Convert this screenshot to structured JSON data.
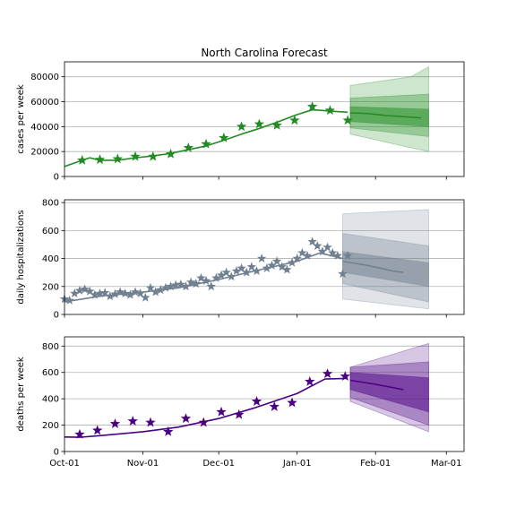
{
  "figure": {
    "title": "North Carolina Forecast"
  },
  "chart_data": [
    {
      "type": "line",
      "panel": "cases",
      "ylabel": "cases per week",
      "xlim": [
        "2020-10-01",
        "2021-03-08"
      ],
      "ylim": [
        0,
        92000
      ],
      "yticks": [
        0,
        20000,
        40000,
        60000,
        80000
      ],
      "ytick_labels": [
        "0",
        "20000",
        "40000",
        "60000",
        "80000"
      ],
      "grid": "horizontal",
      "color": "#228b22",
      "observed": {
        "marker": "star",
        "x": [
          "2020-10-08",
          "2020-10-15",
          "2020-10-22",
          "2020-10-29",
          "2020-11-05",
          "2020-11-12",
          "2020-11-19",
          "2020-11-26",
          "2020-12-03",
          "2020-12-10",
          "2020-12-17",
          "2020-12-24",
          "2020-12-31",
          "2021-01-07",
          "2021-01-14",
          "2021-01-21"
        ],
        "y": [
          13000,
          13500,
          14000,
          16000,
          16000,
          18000,
          23000,
          26000,
          31000,
          40000,
          42000,
          41000,
          45000,
          56000,
          53000,
          45000
        ]
      },
      "fit": {
        "x": [
          "2020-10-01",
          "2020-10-08",
          "2020-10-11",
          "2020-10-15",
          "2020-10-22",
          "2020-10-29",
          "2020-11-05",
          "2020-11-12",
          "2020-11-19",
          "2020-11-26",
          "2020-12-03",
          "2020-12-10",
          "2020-12-17",
          "2020-12-24",
          "2020-12-31",
          "2021-01-07",
          "2021-01-14",
          "2021-01-21"
        ],
        "y": [
          8000,
          13000,
          15000,
          13000,
          13000,
          15000,
          16500,
          18500,
          21500,
          24500,
          29000,
          34000,
          38500,
          43500,
          49000,
          53500,
          52500,
          51500
        ]
      },
      "forecast": {
        "x": [
          "2021-01-22",
          "2021-01-29",
          "2021-02-05",
          "2021-02-12",
          "2021-02-19"
        ],
        "median": [
          51000,
          50500,
          49000,
          48000,
          47000
        ],
        "band_inner": {
          "x": [
            "2021-01-22",
            "2021-02-22"
          ],
          "low": [
            44000,
            40000
          ],
          "high": [
            56000,
            54000
          ]
        },
        "band_mid": {
          "x": [
            "2021-01-22",
            "2021-02-22"
          ],
          "low": [
            39000,
            32000
          ],
          "high": [
            63000,
            66000
          ]
        },
        "band_outer": {
          "x": [
            "2021-01-22",
            "2021-02-15",
            "2021-02-22"
          ],
          "low": [
            34000,
            23000,
            20000
          ],
          "high": [
            73000,
            80000,
            88000
          ]
        }
      }
    },
    {
      "type": "line",
      "panel": "hospitalizations",
      "ylabel": "daily hospitalizations",
      "xlim": [
        "2020-10-01",
        "2021-03-08"
      ],
      "ylim": [
        0,
        820
      ],
      "yticks": [
        0,
        200,
        400,
        600,
        800
      ],
      "ytick_labels": [
        "0",
        "200",
        "400",
        "600",
        "800"
      ],
      "grid": "horizontal",
      "color": "#708090",
      "observed": {
        "marker": "star",
        "x": [
          "2020-10-01",
          "2020-10-03",
          "2020-10-05",
          "2020-10-07",
          "2020-10-09",
          "2020-10-11",
          "2020-10-13",
          "2020-10-15",
          "2020-10-17",
          "2020-10-19",
          "2020-10-21",
          "2020-10-23",
          "2020-10-25",
          "2020-10-27",
          "2020-10-29",
          "2020-10-31",
          "2020-11-02",
          "2020-11-04",
          "2020-11-06",
          "2020-11-08",
          "2020-11-10",
          "2020-11-12",
          "2020-11-14",
          "2020-11-16",
          "2020-11-18",
          "2020-11-20",
          "2020-11-22",
          "2020-11-24",
          "2020-11-26",
          "2020-11-28",
          "2020-11-30",
          "2020-12-02",
          "2020-12-04",
          "2020-12-06",
          "2020-12-08",
          "2020-12-10",
          "2020-12-12",
          "2020-12-14",
          "2020-12-16",
          "2020-12-18",
          "2020-12-20",
          "2020-12-22",
          "2020-12-24",
          "2020-12-26",
          "2020-12-28",
          "2020-12-30",
          "2021-01-01",
          "2021-01-03",
          "2021-01-05",
          "2021-01-07",
          "2021-01-09",
          "2021-01-11",
          "2021-01-13",
          "2021-01-15",
          "2021-01-17",
          "2021-01-19",
          "2021-01-21"
        ],
        "y": [
          110,
          100,
          150,
          170,
          180,
          165,
          140,
          150,
          155,
          130,
          145,
          160,
          150,
          140,
          160,
          150,
          120,
          190,
          160,
          175,
          190,
          200,
          210,
          215,
          200,
          230,
          220,
          260,
          240,
          200,
          260,
          280,
          300,
          270,
          310,
          330,
          300,
          340,
          310,
          400,
          330,
          350,
          380,
          340,
          320,
          370,
          400,
          440,
          420,
          520,
          490,
          450,
          480,
          440,
          420,
          290,
          420
        ]
      },
      "fit": {
        "x": [
          "2020-10-01",
          "2020-10-15",
          "2020-11-01",
          "2020-11-15",
          "2020-12-01",
          "2020-12-15",
          "2021-01-01",
          "2021-01-10",
          "2021-01-19"
        ],
        "y": [
          90,
          130,
          160,
          190,
          250,
          310,
          380,
          440,
          400
        ]
      },
      "forecast": {
        "x": [
          "2021-01-19",
          "2021-01-29",
          "2021-02-08",
          "2021-02-12"
        ],
        "median": [
          380,
          350,
          310,
          300
        ],
        "band_inner": {
          "x": [
            "2021-01-19",
            "2021-02-22"
          ],
          "low": [
            300,
            200
          ],
          "high": [
            450,
            370
          ]
        },
        "band_mid": {
          "x": [
            "2021-01-19",
            "2021-02-22"
          ],
          "low": [
            220,
            90
          ],
          "high": [
            580,
            490
          ]
        },
        "band_outer": {
          "x": [
            "2021-01-19",
            "2021-02-22"
          ],
          "low": [
            110,
            40
          ],
          "high": [
            720,
            750
          ]
        }
      }
    },
    {
      "type": "line",
      "panel": "deaths",
      "ylabel": "deaths per week",
      "xlim": [
        "2020-10-01",
        "2021-03-08"
      ],
      "ylim": [
        0,
        870
      ],
      "yticks": [
        0,
        200,
        400,
        600,
        800
      ],
      "ytick_labels": [
        "0",
        "200",
        "400",
        "600",
        "800"
      ],
      "grid": "horizontal",
      "color": "#4b0082",
      "xticks": [
        "2020-10-01",
        "2020-11-01",
        "2020-12-01",
        "2021-01-01",
        "2021-02-01",
        "2021-03-01"
      ],
      "xtick_labels": [
        "Oct-01",
        "Nov-01",
        "Dec-01",
        "Jan-01",
        "Feb-01",
        "Mar-01"
      ],
      "observed": {
        "marker": "star",
        "x": [
          "2020-10-07",
          "2020-10-14",
          "2020-10-21",
          "2020-10-28",
          "2020-11-04",
          "2020-11-11",
          "2020-11-18",
          "2020-11-25",
          "2020-12-02",
          "2020-12-09",
          "2020-12-16",
          "2020-12-23",
          "2020-12-30",
          "2021-01-06",
          "2021-01-13",
          "2021-01-20"
        ],
        "y": [
          130,
          160,
          210,
          230,
          220,
          150,
          250,
          220,
          300,
          280,
          380,
          340,
          370,
          530,
          590,
          570
        ]
      },
      "fit": {
        "x": [
          "2020-10-01",
          "2020-10-07",
          "2020-10-15",
          "2020-11-01",
          "2020-11-15",
          "2020-12-01",
          "2020-12-15",
          "2021-01-01",
          "2021-01-12",
          "2021-01-21"
        ],
        "y": [
          110,
          108,
          120,
          150,
          185,
          250,
          330,
          440,
          550,
          555
        ]
      },
      "forecast": {
        "x": [
          "2021-01-22",
          "2021-02-01",
          "2021-02-12"
        ],
        "median": [
          540,
          510,
          470
        ],
        "band_inner": {
          "x": [
            "2021-01-22",
            "2021-02-22"
          ],
          "low": [
            470,
            300
          ],
          "high": [
            600,
            560
          ]
        },
        "band_mid": {
          "x": [
            "2021-01-22",
            "2021-02-22"
          ],
          "low": [
            410,
            200
          ],
          "high": [
            640,
            680
          ]
        },
        "band_outer": {
          "x": [
            "2021-01-22",
            "2021-02-22"
          ],
          "low": [
            380,
            150
          ],
          "high": [
            640,
            820
          ]
        }
      }
    }
  ]
}
